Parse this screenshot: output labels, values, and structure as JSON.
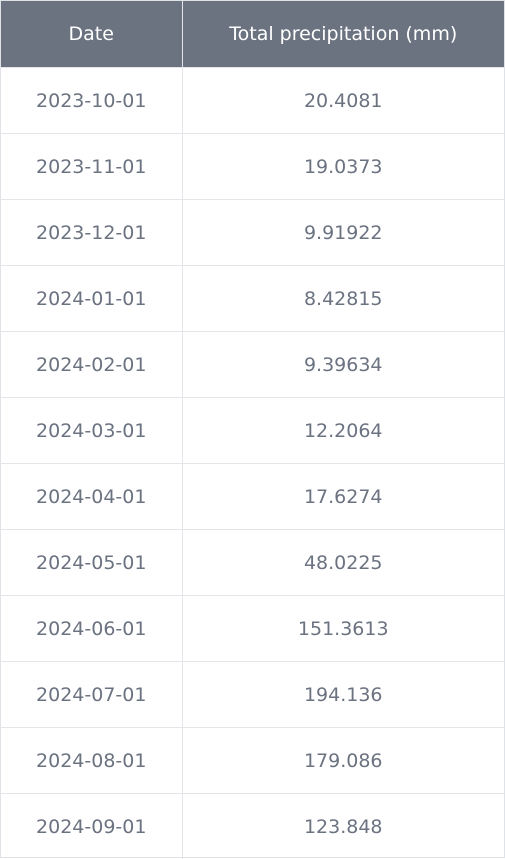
{
  "table": {
    "headers": {
      "date": "Date",
      "value": "Total precipitation (mm)"
    },
    "rows": [
      {
        "date": "2023-10-01",
        "value": "20.4081"
      },
      {
        "date": "2023-11-01",
        "value": "19.0373"
      },
      {
        "date": "2023-12-01",
        "value": "9.91922"
      },
      {
        "date": "2024-01-01",
        "value": "8.42815"
      },
      {
        "date": "2024-02-01",
        "value": "9.39634"
      },
      {
        "date": "2024-03-01",
        "value": "12.2064"
      },
      {
        "date": "2024-04-01",
        "value": "17.6274"
      },
      {
        "date": "2024-05-01",
        "value": "48.0225"
      },
      {
        "date": "2024-06-01",
        "value": "151.3613"
      },
      {
        "date": "2024-07-01",
        "value": "194.136"
      },
      {
        "date": "2024-08-01",
        "value": "179.086"
      },
      {
        "date": "2024-09-01",
        "value": "123.848"
      }
    ]
  },
  "colors": {
    "header_bg": "#6b7280",
    "header_text": "#ffffff",
    "cell_text": "#6b7280",
    "grid": "#e3e5e8"
  }
}
